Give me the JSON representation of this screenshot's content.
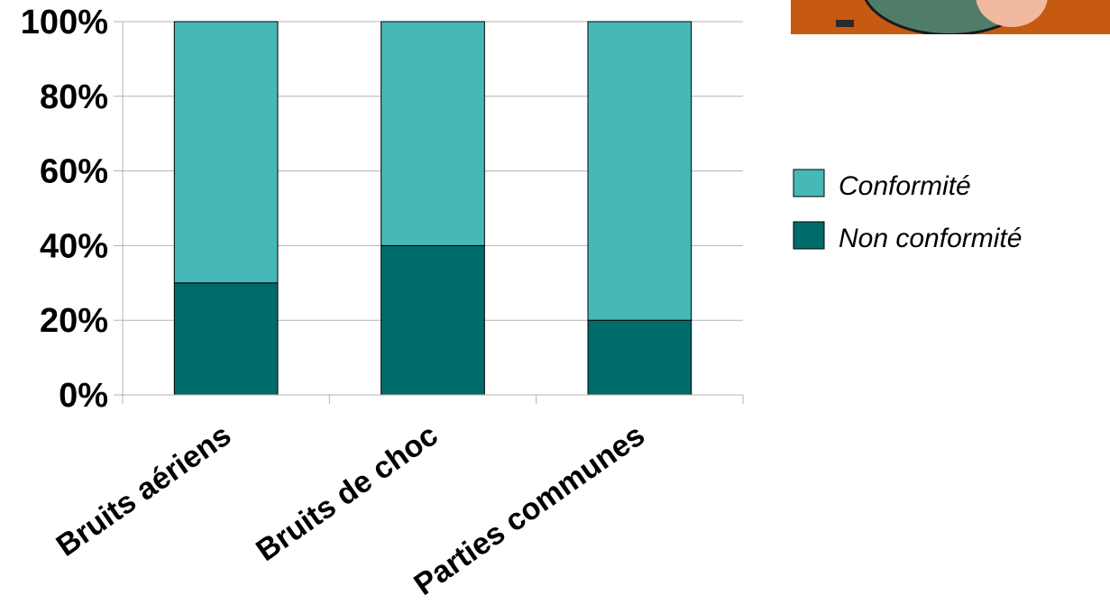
{
  "chart_data": {
    "type": "bar",
    "stacked": true,
    "categories": [
      "Bruits aériens",
      "Bruits de choc",
      "Parties communes"
    ],
    "series": [
      {
        "name": "Non conformité",
        "values": [
          30,
          40,
          20
        ],
        "color": "#006b6b"
      },
      {
        "name": "Conformité",
        "values": [
          70,
          60,
          80
        ],
        "color": "#47b8b8"
      }
    ],
    "ylim": [
      0,
      100
    ],
    "yticks": [
      "0%",
      "20%",
      "40%",
      "60%",
      "80%",
      "100%"
    ],
    "grid": true,
    "legend_position": "right",
    "legend_order": [
      "Conformité",
      "Non conformité"
    ]
  }
}
